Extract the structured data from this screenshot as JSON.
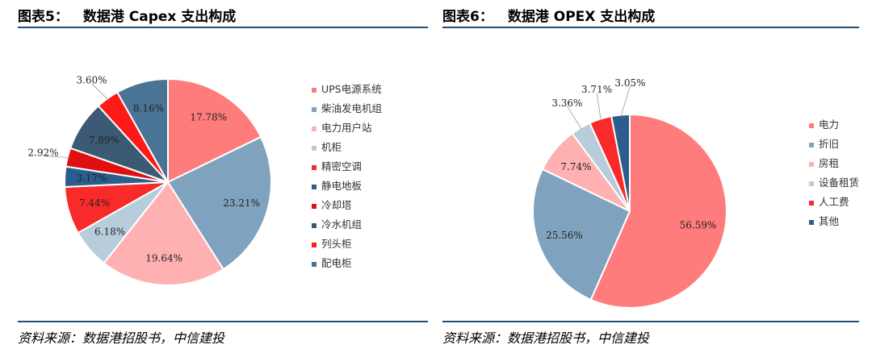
{
  "left": {
    "title_prefix": "图表5：",
    "title": "数据港 Capex 支出构成",
    "source": "资料来源：数据港招股书，中信建投"
  },
  "right": {
    "title_prefix": "图表6：",
    "title": "数据港 OPEX 支出构成",
    "source": "资料来源：数据港招股书，中信建投"
  },
  "chart_data": [
    {
      "type": "pie",
      "title": "数据港 Capex 支出构成",
      "legend_position": "right",
      "slices": [
        {
          "name": "UPS电源系统",
          "value": 17.78,
          "label": "17.78%",
          "color": "#ff7c7c"
        },
        {
          "name": "柴油发电机组",
          "value": 23.21,
          "label": "23.21%",
          "color": "#7fa3bf"
        },
        {
          "name": "电力用户站",
          "value": 19.64,
          "label": "19.64%",
          "color": "#ffb0b0"
        },
        {
          "name": "机柜",
          "value": 6.18,
          "label": "6.18%",
          "color": "#b7cddc"
        },
        {
          "name": "精密空调",
          "value": 7.44,
          "label": "7.44%",
          "color": "#f92a2a"
        },
        {
          "name": "静电地板",
          "value": 3.17,
          "label": "3.17%",
          "color": "#2b5e8e"
        },
        {
          "name": "冷却塔",
          "value": 2.92,
          "label": "2.92%",
          "color": "#e01010"
        },
        {
          "name": "冷水机组",
          "value": 7.89,
          "label": "7.89%",
          "color": "#3c5a73"
        },
        {
          "name": "列头柜",
          "value": 3.6,
          "label": "3.60%",
          "color": "#ff1a1a"
        },
        {
          "name": "配电柜",
          "value": 8.16,
          "label": "8.16%",
          "color": "#4a7495"
        }
      ]
    },
    {
      "type": "pie",
      "title": "数据港 OPEX 支出构成",
      "legend_position": "right",
      "slices": [
        {
          "name": "电力",
          "value": 56.59,
          "label": "56.59%",
          "color": "#ff7c7c"
        },
        {
          "name": "折旧",
          "value": 25.56,
          "label": "25.56%",
          "color": "#7fa3bf"
        },
        {
          "name": "房租",
          "value": 7.74,
          "label": "7.74%",
          "color": "#ffb0b0"
        },
        {
          "name": "设备租赁",
          "value": 3.36,
          "label": "3.36%",
          "color": "#b7cddc"
        },
        {
          "name": "人工费",
          "value": 3.71,
          "label": "3.71%",
          "color": "#f92a2a"
        },
        {
          "name": "其他",
          "value": 3.05,
          "label": "3.05%",
          "color": "#2b5e8e"
        }
      ]
    }
  ]
}
